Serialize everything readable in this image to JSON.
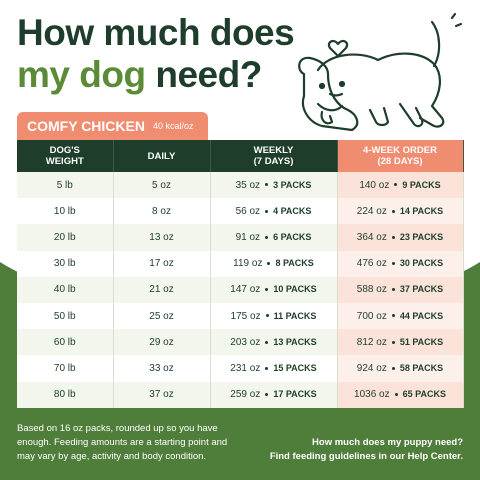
{
  "header": {
    "title_line1": "How much does",
    "title_line2_highlight": "my dog",
    "title_line2_rest": "need?"
  },
  "tab": {
    "name": "COMFY CHICKEN",
    "kcal": "40 kcal/oz"
  },
  "table": {
    "header": [
      [
        "DOG'S",
        "WEIGHT"
      ],
      [
        "DAILY"
      ],
      [
        "WEEKLY",
        "(7 DAYS)"
      ],
      [
        "4-WEEK ORDER",
        "(28 DAYS)"
      ]
    ],
    "rows": [
      [
        "5 lb",
        "5 oz",
        "35 oz",
        "3 PACKS",
        "140 oz",
        "9 PACKS"
      ],
      [
        "10 lb",
        "8 oz",
        "56 oz",
        "4 PACKS",
        "224 oz",
        "14 PACKS"
      ],
      [
        "20 lb",
        "13 oz",
        "91 oz",
        "6 PACKS",
        "364 oz",
        "23 PACKS"
      ],
      [
        "30 lb",
        "17 oz",
        "119 oz",
        "8 PACKS",
        "476 oz",
        "30 PACKS"
      ],
      [
        "40 lb",
        "21 oz",
        "147 oz",
        "10 PACKS",
        "588 oz",
        "37 PACKS"
      ],
      [
        "50 lb",
        "25 oz",
        "175 oz",
        "11 PACKS",
        "700 oz",
        "44 PACKS"
      ],
      [
        "60 lb",
        "29 oz",
        "203 oz",
        "13 PACKS",
        "812 oz",
        "51 PACKS"
      ],
      [
        "70 lb",
        "33 oz",
        "231 oz",
        "15 PACKS",
        "924 oz",
        "58 PACKS"
      ],
      [
        "80 lb",
        "37 oz",
        "259 oz",
        "17 PACKS",
        "1036 oz",
        "65 PACKS"
      ]
    ]
  },
  "footer": {
    "note": "Based on 16 oz packs, rounded up so you have enough. Feeding amounts are a starting point and may vary by age, activity and body condition.",
    "help": [
      "How much does my puppy need?",
      "Find feeding guidelines in our Help Center."
    ]
  }
}
